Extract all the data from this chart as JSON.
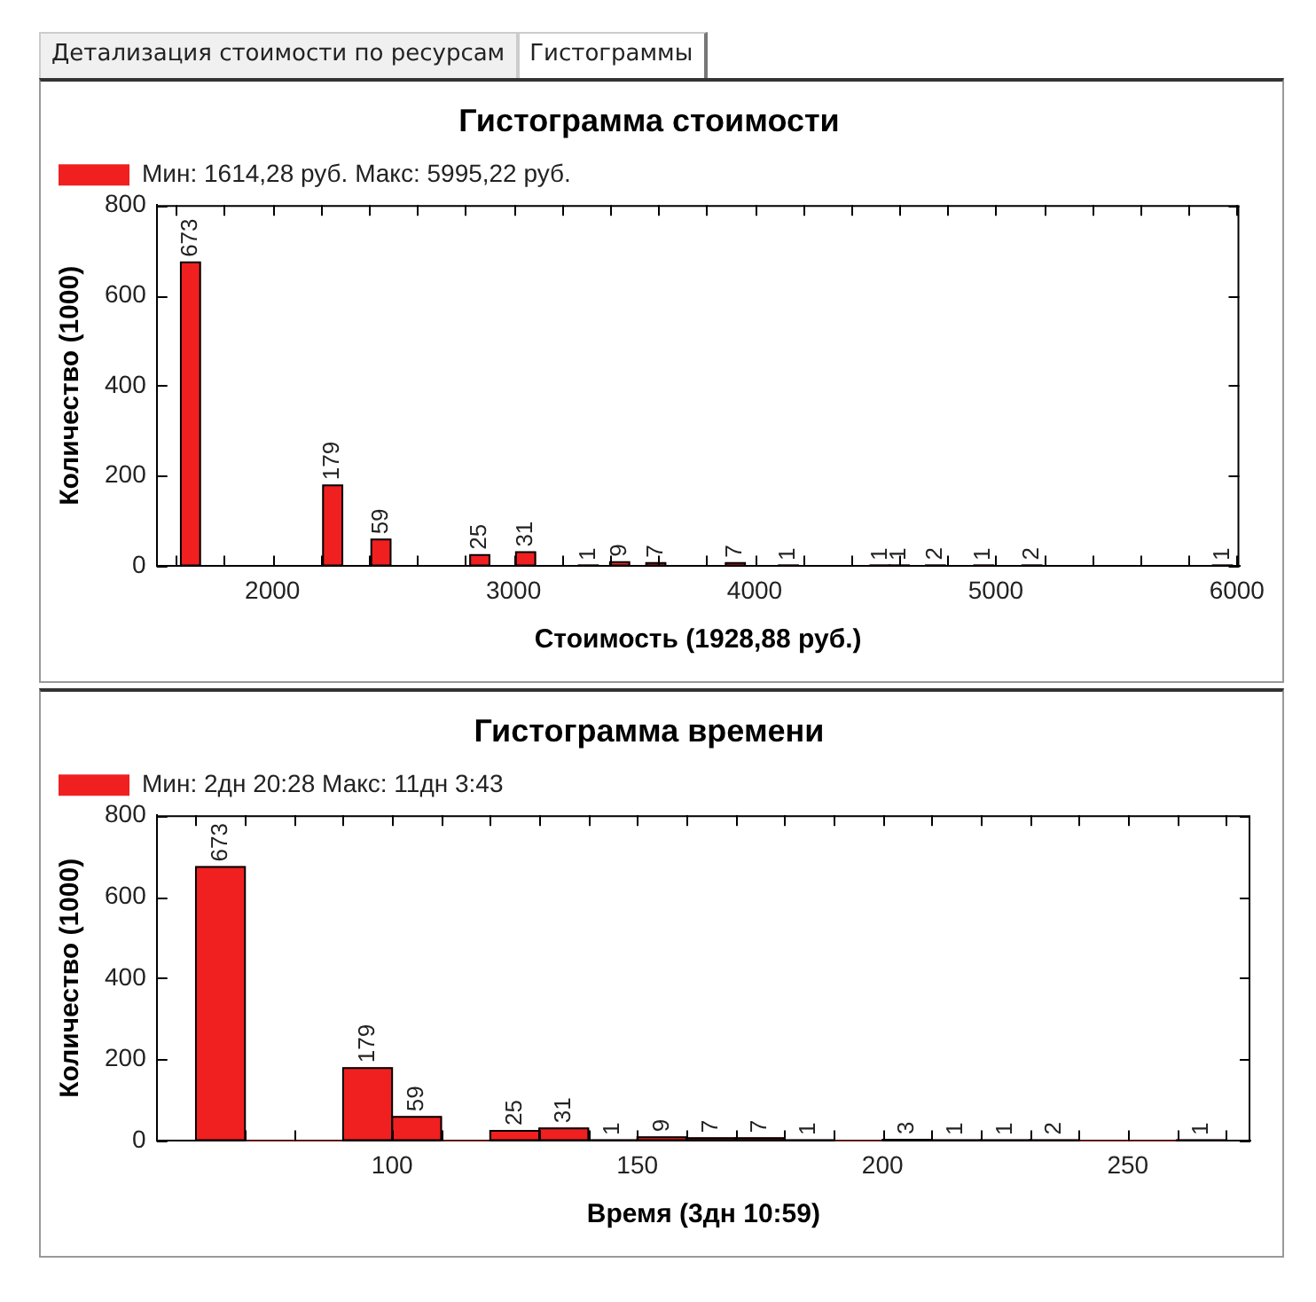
{
  "chart_data": [
    {
      "type": "bar",
      "title": "Гистограмма стоимости",
      "xlabel": "Стоимость (1928,88 руб.)",
      "ylabel": "Количество (1000)",
      "annotations": [
        "Детализация стоимости по ресурсам",
        "Гистограммы"
      ],
      "x": [
        1660,
        2250,
        2450,
        2860,
        3050,
        3310,
        3440,
        3590,
        3920,
        4140,
        4520,
        4600,
        4750,
        4950,
        5150,
        5940
      ],
      "series": [
        {
          "name": "Мин: 1614,28 руб. Макс: 5995,22 руб.",
          "color": "#f02020",
          "values": [
            673,
            179,
            59,
            25,
            31,
            1,
            9,
            7,
            7,
            1,
            1,
            1,
            2,
            1,
            2,
            1
          ]
        }
      ],
      "data_labels": true,
      "xlim": [
        1520,
        6010
      ],
      "xticks": [
        {
          "value": 1600,
          "label": null
        },
        {
          "value": 1800,
          "label": null
        },
        2000,
        {
          "value": 2200,
          "label": null
        },
        {
          "value": 2400,
          "label": null
        },
        {
          "value": 2600,
          "label": null
        },
        {
          "value": 2800,
          "label": null
        },
        3000,
        {
          "value": 3200,
          "label": null
        },
        {
          "value": 3400,
          "label": null
        },
        {
          "value": 3600,
          "label": null
        },
        {
          "value": 3800,
          "label": null
        },
        4000,
        {
          "value": 4200,
          "label": null
        },
        {
          "value": 4400,
          "label": null
        },
        {
          "value": 4600,
          "label": null
        },
        {
          "value": 4800,
          "label": null
        },
        5000,
        {
          "value": 5200,
          "label": null
        },
        {
          "value": 5400,
          "label": null
        },
        {
          "value": 5600,
          "label": null
        },
        {
          "value": 5800,
          "label": null
        },
        6000
      ],
      "ylim": [
        0,
        800
      ],
      "yticks": [
        0,
        200,
        400,
        600,
        800
      ],
      "legend": "top left"
    },
    {
      "type": "histogram",
      "title": "Гистограмма времени",
      "xlabel": "Время (3дн 10:59)",
      "ylabel": "Количество (1000)",
      "bins": [
        60,
        70,
        80,
        90,
        100,
        110,
        120,
        130,
        140,
        150,
        160,
        170,
        180,
        190,
        200,
        210,
        220,
        230,
        240,
        250,
        260,
        270
      ],
      "series": [
        {
          "name": "Мин: 2дн 20:28 Макс: 11дн 3:43",
          "color": "#f02020",
          "values": [
            673,
            0,
            0,
            179,
            59,
            0,
            25,
            31,
            1,
            9,
            7,
            7,
            1,
            0,
            3,
            1,
            1,
            2,
            0,
            0,
            1
          ],
          "value_labels": [
            "673",
            null,
            null,
            "179",
            "59",
            null,
            "25",
            "31",
            "1",
            "9",
            "7",
            "7",
            "1",
            null,
            "3",
            "1",
            "1",
            "2",
            null,
            null,
            "1"
          ]
        }
      ],
      "xlim": [
        52,
        275
      ],
      "xticks": [
        {
          "value": 60,
          "label": null
        },
        {
          "value": 70,
          "label": null
        },
        {
          "value": 80,
          "label": null
        },
        {
          "value": 90,
          "label": null
        },
        100,
        {
          "value": 110,
          "label": null
        },
        {
          "value": 120,
          "label": null
        },
        {
          "value": 130,
          "label": null
        },
        {
          "value": 140,
          "label": null
        },
        150,
        {
          "value": 160,
          "label": null
        },
        {
          "value": 170,
          "label": null
        },
        {
          "value": 180,
          "label": null
        },
        {
          "value": 190,
          "label": null
        },
        200,
        {
          "value": 210,
          "label": null
        },
        {
          "value": 220,
          "label": null
        },
        {
          "value": 230,
          "label": null
        },
        {
          "value": 240,
          "label": null
        },
        250,
        {
          "value": 260,
          "label": null
        },
        {
          "value": 270,
          "label": null
        }
      ],
      "ylim": [
        0,
        800
      ],
      "yticks": [
        0,
        200,
        400,
        600,
        800
      ],
      "legend": "top left"
    }
  ]
}
